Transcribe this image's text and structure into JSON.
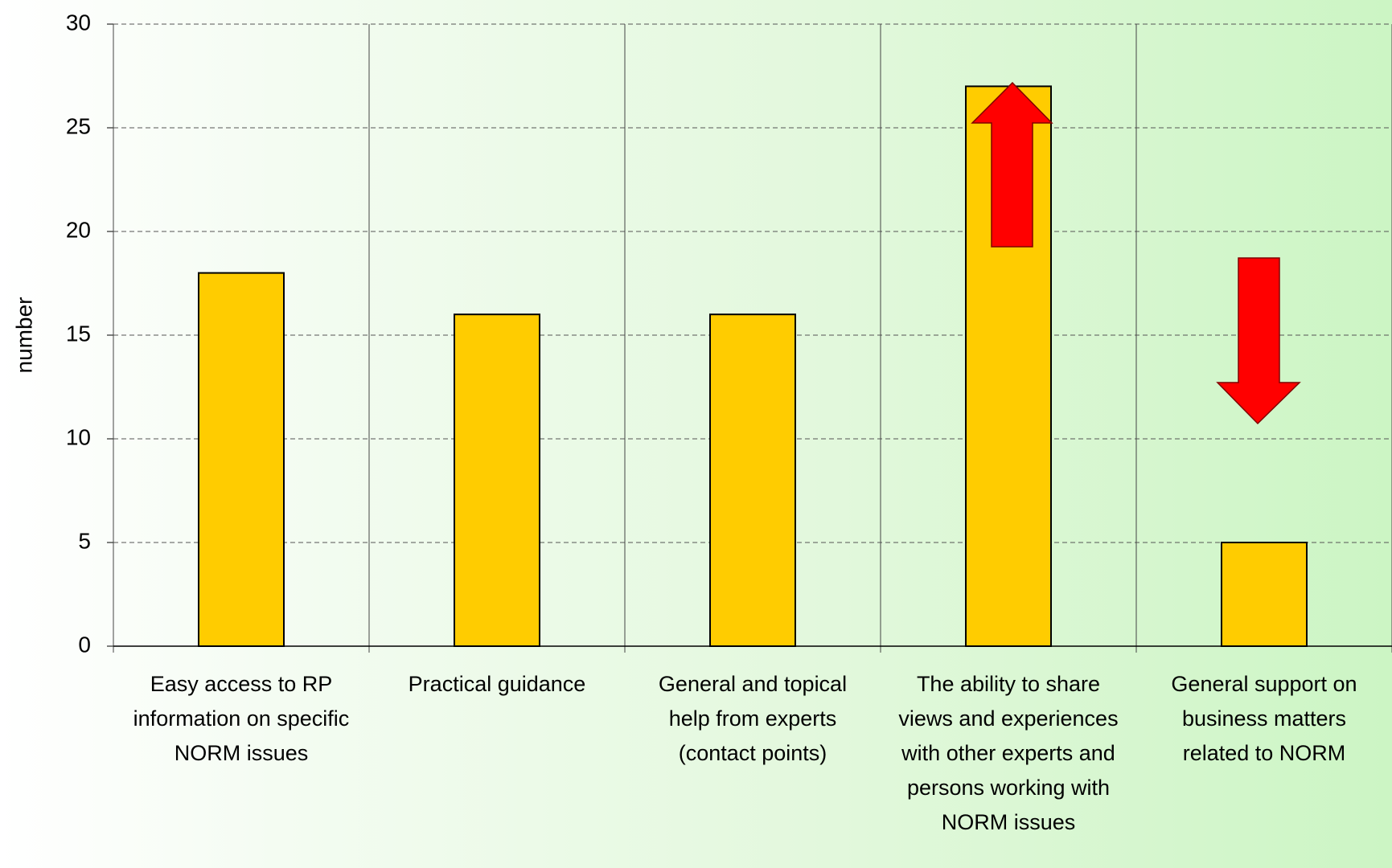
{
  "chart_data": {
    "type": "bar",
    "y_label": "number",
    "categories": [
      "Easy access to RP information on specific NORM issues",
      "Practical guidance",
      "General and topical help from experts (contact points)",
      "The ability to share views and experiences with other experts and persons working with NORM issues",
      "General support on business matters related to NORM"
    ],
    "values": [
      18,
      16,
      16,
      27,
      5
    ],
    "color": "#ffcc00",
    "ylim": [
      0,
      30
    ],
    "yticks": [
      0,
      5,
      10,
      15,
      20,
      25,
      30
    ],
    "grid": true
  }
}
